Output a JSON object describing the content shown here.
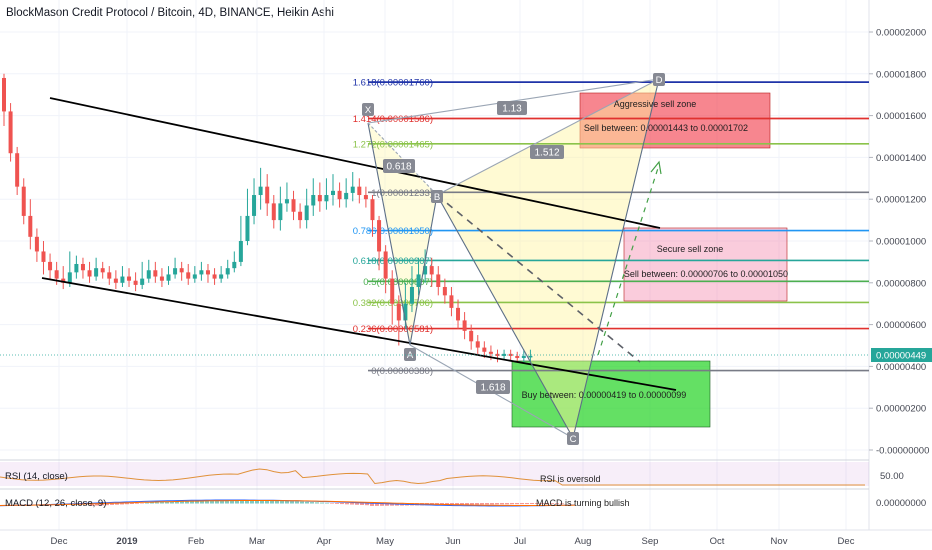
{
  "title": "BlockMason Credit Protocol / Bitcoin, 4D, BINANCE, Heikin Ashi",
  "colors": {
    "up": "#26a69a",
    "down": "#ef5350",
    "price_tag": "#26a69a"
  },
  "price_axis": {
    "ticks": [
      "0.00002000",
      "0.00001800",
      "0.00001600",
      "0.00001400",
      "0.00001200",
      "0.00001000",
      "0.00000800",
      "0.00000600",
      "0.00000400",
      "0.00000200",
      "-0.00000000"
    ],
    "current_price": "0.00000449"
  },
  "time_axis": [
    "Dec",
    "2019",
    "Feb",
    "Mar",
    "Apr",
    "May",
    "Jun",
    "Jul",
    "Aug",
    "Sep",
    "Oct",
    "Nov",
    "Dec"
  ],
  "fib_levels": [
    {
      "label": "1.618(0.00001760)",
      "value": 1.76e-05,
      "color": "#1f33a8"
    },
    {
      "label": "1.414(0.00001586)",
      "value": 1.586e-05,
      "color": "#e0312f"
    },
    {
      "label": "1.272(0.00001465)",
      "value": 1.465e-05,
      "color": "#8bc34a"
    },
    {
      "label": "1(0.00001233)",
      "value": 1.233e-05,
      "color": "#787b86"
    },
    {
      "label": "0.786(0.00001050)",
      "value": 1.05e-05,
      "color": "#2196f3"
    },
    {
      "label": "0.618(0.00000907)",
      "value": 9.07e-06,
      "color": "#26a69a"
    },
    {
      "label": "0.5(0.00000807)",
      "value": 8.07e-06,
      "color": "#4caf50"
    },
    {
      "label": "0.382(0.00000706)",
      "value": 7.06e-06,
      "color": "#8bc34a"
    },
    {
      "label": "0.236(0.00000581)",
      "value": 5.81e-06,
      "color": "#e0312f"
    },
    {
      "label": "0(0.00000380)",
      "value": 3.8e-06,
      "color": "#787b86"
    }
  ],
  "pattern_points": [
    "X",
    "A",
    "B",
    "C",
    "D"
  ],
  "pattern_ratios": [
    "1.13",
    "0.618",
    "1.512",
    "1.618"
  ],
  "zones": [
    {
      "title": "Aggressive sell zone",
      "text": "Sell between: 0.00001443 to 0.00001702",
      "color": "#f23645"
    },
    {
      "title": "Secure sell zone",
      "text": "Sell between: 0.00000706 to 0.00001050",
      "color": "#f48fb1"
    },
    {
      "title": "",
      "text": "Buy between: 0.00000419 to 0.00000099",
      "color": "#22d322"
    }
  ],
  "rsi": {
    "title": "RSI (14, close)",
    "note": "RSI is oversold",
    "level": "50.00"
  },
  "macd": {
    "title": "MACD (12, 26, close, 9)",
    "note": "MACD is turning bullish",
    "level": "0.00000000"
  },
  "chart_data": {
    "type": "candlestick",
    "title": "BlockMason Credit Protocol / Bitcoin, 4D, BINANCE, Heikin Ashi",
    "ylim": [
      -1e-07,
      2.13e-05
    ],
    "candles": [
      {
        "o": 1.78,
        "c": 1.62,
        "h": 1.8,
        "l": 1.55
      },
      {
        "o": 1.62,
        "c": 1.42,
        "h": 1.66,
        "l": 1.38
      },
      {
        "o": 1.42,
        "c": 1.26,
        "h": 1.45,
        "l": 1.22
      },
      {
        "o": 1.26,
        "c": 1.12,
        "h": 1.3,
        "l": 1.08
      },
      {
        "o": 1.12,
        "c": 1.02,
        "h": 1.2,
        "l": 0.96
      },
      {
        "o": 1.02,
        "c": 0.95,
        "h": 1.06,
        "l": 0.9
      },
      {
        "o": 0.95,
        "c": 0.9,
        "h": 1.0,
        "l": 0.84
      },
      {
        "o": 0.9,
        "c": 0.86,
        "h": 0.94,
        "l": 0.82
      },
      {
        "o": 0.86,
        "c": 0.82,
        "h": 0.9,
        "l": 0.79
      },
      {
        "o": 0.82,
        "c": 0.8,
        "h": 0.88,
        "l": 0.77
      },
      {
        "o": 0.8,
        "c": 0.85,
        "h": 0.95,
        "l": 0.78
      },
      {
        "o": 0.85,
        "c": 0.89,
        "h": 0.93,
        "l": 0.82
      },
      {
        "o": 0.89,
        "c": 0.86,
        "h": 0.92,
        "l": 0.82
      },
      {
        "o": 0.86,
        "c": 0.83,
        "h": 0.9,
        "l": 0.8
      },
      {
        "o": 0.83,
        "c": 0.87,
        "h": 0.92,
        "l": 0.81
      },
      {
        "o": 0.87,
        "c": 0.85,
        "h": 0.9,
        "l": 0.82
      },
      {
        "o": 0.85,
        "c": 0.82,
        "h": 0.88,
        "l": 0.79
      },
      {
        "o": 0.82,
        "c": 0.8,
        "h": 0.86,
        "l": 0.77
      },
      {
        "o": 0.8,
        "c": 0.83,
        "h": 0.88,
        "l": 0.78
      },
      {
        "o": 0.83,
        "c": 0.81,
        "h": 0.87,
        "l": 0.78
      },
      {
        "o": 0.81,
        "c": 0.79,
        "h": 0.85,
        "l": 0.76
      },
      {
        "o": 0.79,
        "c": 0.82,
        "h": 0.9,
        "l": 0.77
      },
      {
        "o": 0.82,
        "c": 0.86,
        "h": 0.91,
        "l": 0.8
      },
      {
        "o": 0.86,
        "c": 0.83,
        "h": 0.9,
        "l": 0.8
      },
      {
        "o": 0.83,
        "c": 0.81,
        "h": 0.87,
        "l": 0.78
      },
      {
        "o": 0.81,
        "c": 0.84,
        "h": 0.88,
        "l": 0.79
      },
      {
        "o": 0.84,
        "c": 0.87,
        "h": 0.92,
        "l": 0.82
      },
      {
        "o": 0.87,
        "c": 0.85,
        "h": 0.9,
        "l": 0.81
      },
      {
        "o": 0.85,
        "c": 0.82,
        "h": 0.89,
        "l": 0.79
      },
      {
        "o": 0.82,
        "c": 0.84,
        "h": 0.88,
        "l": 0.8
      },
      {
        "o": 0.84,
        "c": 0.86,
        "h": 0.9,
        "l": 0.81
      },
      {
        "o": 0.86,
        "c": 0.84,
        "h": 0.89,
        "l": 0.8
      },
      {
        "o": 0.84,
        "c": 0.82,
        "h": 0.87,
        "l": 0.79
      },
      {
        "o": 0.82,
        "c": 0.84,
        "h": 0.88,
        "l": 0.8
      },
      {
        "o": 0.84,
        "c": 0.87,
        "h": 0.91,
        "l": 0.82
      },
      {
        "o": 0.87,
        "c": 0.9,
        "h": 0.95,
        "l": 0.85
      },
      {
        "o": 0.9,
        "c": 1.0,
        "h": 1.12,
        "l": 0.88
      },
      {
        "o": 1.0,
        "c": 1.12,
        "h": 1.25,
        "l": 0.98
      },
      {
        "o": 1.12,
        "c": 1.22,
        "h": 1.3,
        "l": 1.08
      },
      {
        "o": 1.22,
        "c": 1.26,
        "h": 1.35,
        "l": 1.15
      },
      {
        "o": 1.26,
        "c": 1.18,
        "h": 1.32,
        "l": 1.12
      },
      {
        "o": 1.18,
        "c": 1.1,
        "h": 1.22,
        "l": 1.06
      },
      {
        "o": 1.1,
        "c": 1.18,
        "h": 1.26,
        "l": 1.05
      },
      {
        "o": 1.18,
        "c": 1.2,
        "h": 1.28,
        "l": 1.14
      },
      {
        "o": 1.2,
        "c": 1.14,
        "h": 1.24,
        "l": 1.1
      },
      {
        "o": 1.14,
        "c": 1.1,
        "h": 1.18,
        "l": 1.06
      },
      {
        "o": 1.1,
        "c": 1.17,
        "h": 1.25,
        "l": 1.06
      },
      {
        "o": 1.17,
        "c": 1.22,
        "h": 1.3,
        "l": 1.12
      },
      {
        "o": 1.22,
        "c": 1.19,
        "h": 1.28,
        "l": 1.14
      },
      {
        "o": 1.19,
        "c": 1.22,
        "h": 1.3,
        "l": 1.15
      },
      {
        "o": 1.22,
        "c": 1.24,
        "h": 1.32,
        "l": 1.17
      },
      {
        "o": 1.24,
        "c": 1.2,
        "h": 1.28,
        "l": 1.16
      },
      {
        "o": 1.2,
        "c": 1.23,
        "h": 1.3,
        "l": 1.16
      },
      {
        "o": 1.23,
        "c": 1.26,
        "h": 1.33,
        "l": 1.19
      },
      {
        "o": 1.26,
        "c": 1.22,
        "h": 1.3,
        "l": 1.18
      },
      {
        "o": 1.22,
        "c": 1.2,
        "h": 1.26,
        "l": 1.16
      },
      {
        "o": 1.2,
        "c": 1.1,
        "h": 1.22,
        "l": 1.02
      },
      {
        "o": 1.1,
        "c": 0.95,
        "h": 1.12,
        "l": 0.86
      },
      {
        "o": 0.95,
        "c": 0.82,
        "h": 0.98,
        "l": 0.75
      },
      {
        "o": 0.82,
        "c": 0.7,
        "h": 0.86,
        "l": 0.6
      },
      {
        "o": 0.7,
        "c": 0.62,
        "h": 0.74,
        "l": 0.5
      },
      {
        "o": 0.62,
        "c": 0.7,
        "h": 0.8,
        "l": 0.58
      },
      {
        "o": 0.7,
        "c": 0.78,
        "h": 0.88,
        "l": 0.66
      },
      {
        "o": 0.78,
        "c": 0.84,
        "h": 0.92,
        "l": 0.74
      },
      {
        "o": 0.84,
        "c": 0.88,
        "h": 0.96,
        "l": 0.8
      },
      {
        "o": 0.88,
        "c": 0.84,
        "h": 0.92,
        "l": 0.78
      },
      {
        "o": 0.84,
        "c": 0.78,
        "h": 0.88,
        "l": 0.74
      },
      {
        "o": 0.78,
        "c": 0.74,
        "h": 0.82,
        "l": 0.7
      },
      {
        "o": 0.74,
        "c": 0.68,
        "h": 0.78,
        "l": 0.64
      },
      {
        "o": 0.68,
        "c": 0.62,
        "h": 0.72,
        "l": 0.58
      },
      {
        "o": 0.62,
        "c": 0.57,
        "h": 0.66,
        "l": 0.53
      },
      {
        "o": 0.57,
        "c": 0.52,
        "h": 0.6,
        "l": 0.48
      },
      {
        "o": 0.52,
        "c": 0.49,
        "h": 0.55,
        "l": 0.45
      },
      {
        "o": 0.49,
        "c": 0.47,
        "h": 0.52,
        "l": 0.44
      },
      {
        "o": 0.47,
        "c": 0.46,
        "h": 0.5,
        "l": 0.43
      },
      {
        "o": 0.46,
        "c": 0.45,
        "h": 0.48,
        "l": 0.42
      },
      {
        "o": 0.45,
        "c": 0.46,
        "h": 0.48,
        "l": 0.43
      },
      {
        "o": 0.46,
        "c": 0.45,
        "h": 0.48,
        "l": 0.43
      },
      {
        "o": 0.45,
        "c": 0.44,
        "h": 0.47,
        "l": 0.42
      },
      {
        "o": 0.44,
        "c": 0.45,
        "h": 0.48,
        "l": 0.42
      },
      {
        "o": 0.45,
        "c": 0.45,
        "h": 0.48,
        "l": 0.42
      }
    ],
    "candle_unit": "0.00001",
    "yaxis_ticks": [
      "0.00002000",
      "0.00001800",
      "0.00001600",
      "0.00001400",
      "0.00001200",
      "0.00001000",
      "0.00000800",
      "0.00000600",
      "0.00000400",
      "0.00000200",
      "-0.00000000"
    ]
  }
}
